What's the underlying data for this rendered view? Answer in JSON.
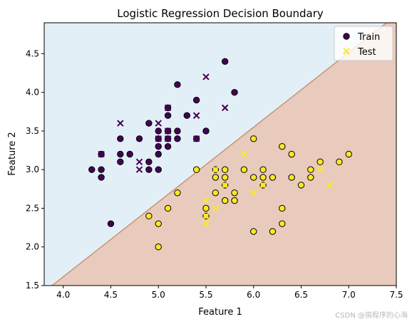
{
  "chart_data": {
    "type": "scatter",
    "title": "Logistic Regression Decision Boundary",
    "xlabel": "Feature 1",
    "ylabel": "Feature 2",
    "xlim": [
      3.8,
      7.5
    ],
    "ylim": [
      1.5,
      4.9
    ],
    "xticks": [
      "4.0",
      "4.5",
      "5.0",
      "5.5",
      "6.0",
      "6.5",
      "7.0",
      "7.5"
    ],
    "yticks": [
      "1.5",
      "2.0",
      "2.5",
      "3.0",
      "3.5",
      "4.0",
      "4.5"
    ],
    "grid": false,
    "legend_position": "top-right",
    "decision_boundary": {
      "x": [
        3.8,
        7.5
      ],
      "y": [
        1.42,
        5.0
      ]
    },
    "regions": {
      "upper_color": "#e3eff7",
      "lower_color": "#e8cbbd",
      "edge_color": "#c9937a"
    },
    "colors": {
      "class0": "#440154",
      "class1": "#fde725"
    },
    "series": [
      {
        "name": "Train",
        "marker": "circle",
        "class0": [
          [
            4.3,
            3.0
          ],
          [
            4.4,
            3.0
          ],
          [
            4.4,
            2.9
          ],
          [
            4.4,
            3.2
          ],
          [
            4.5,
            2.3
          ],
          [
            4.6,
            3.4
          ],
          [
            4.6,
            3.2
          ],
          [
            4.6,
            3.1
          ],
          [
            4.7,
            3.2
          ],
          [
            4.8,
            3.4
          ],
          [
            4.9,
            3.6
          ],
          [
            4.9,
            3.1
          ],
          [
            4.9,
            3.0
          ],
          [
            5.0,
            3.5
          ],
          [
            5.0,
            3.4
          ],
          [
            5.0,
            3.3
          ],
          [
            5.0,
            3.2
          ],
          [
            5.0,
            3.0
          ],
          [
            5.1,
            3.8
          ],
          [
            5.1,
            3.7
          ],
          [
            5.1,
            3.5
          ],
          [
            5.1,
            3.4
          ],
          [
            5.1,
            3.3
          ],
          [
            5.2,
            4.1
          ],
          [
            5.2,
            3.5
          ],
          [
            5.2,
            3.4
          ],
          [
            5.3,
            3.7
          ],
          [
            5.4,
            3.9
          ],
          [
            5.4,
            3.4
          ],
          [
            5.5,
            3.5
          ],
          [
            5.7,
            4.4
          ],
          [
            5.8,
            4.0
          ]
        ],
        "class1": [
          [
            4.9,
            2.4
          ],
          [
            5.0,
            2.3
          ],
          [
            5.0,
            2.0
          ],
          [
            5.1,
            2.5
          ],
          [
            5.2,
            2.7
          ],
          [
            5.4,
            3.0
          ],
          [
            5.5,
            2.5
          ],
          [
            5.5,
            2.4
          ],
          [
            5.6,
            3.0
          ],
          [
            5.6,
            2.9
          ],
          [
            5.6,
            2.7
          ],
          [
            5.7,
            3.0
          ],
          [
            5.7,
            2.9
          ],
          [
            5.7,
            2.8
          ],
          [
            5.7,
            2.6
          ],
          [
            5.8,
            2.7
          ],
          [
            5.8,
            2.6
          ],
          [
            5.9,
            3.0
          ],
          [
            6.0,
            3.4
          ],
          [
            6.0,
            2.9
          ],
          [
            6.0,
            2.2
          ],
          [
            6.1,
            3.0
          ],
          [
            6.1,
            2.9
          ],
          [
            6.1,
            2.8
          ],
          [
            6.2,
            2.9
          ],
          [
            6.2,
            2.2
          ],
          [
            6.3,
            3.3
          ],
          [
            6.3,
            2.5
          ],
          [
            6.3,
            2.3
          ],
          [
            6.4,
            3.2
          ],
          [
            6.4,
            2.9
          ],
          [
            6.5,
            2.8
          ],
          [
            6.6,
            3.0
          ],
          [
            6.6,
            2.9
          ],
          [
            6.7,
            3.1
          ],
          [
            6.9,
            3.1
          ],
          [
            7.0,
            3.2
          ]
        ]
      },
      {
        "name": "Test",
        "marker": "x",
        "class0": [
          [
            4.4,
            3.2
          ],
          [
            4.6,
            3.6
          ],
          [
            4.8,
            3.1
          ],
          [
            4.8,
            3.0
          ],
          [
            5.0,
            3.6
          ],
          [
            5.0,
            3.4
          ],
          [
            5.1,
            3.8
          ],
          [
            5.1,
            3.5
          ],
          [
            5.1,
            3.4
          ],
          [
            5.4,
            3.7
          ],
          [
            5.4,
            3.4
          ],
          [
            5.5,
            4.2
          ],
          [
            5.7,
            3.8
          ]
        ],
        "class1": [
          [
            5.5,
            2.6
          ],
          [
            5.5,
            2.4
          ],
          [
            5.5,
            2.3
          ],
          [
            5.6,
            3.0
          ],
          [
            5.6,
            2.5
          ],
          [
            5.7,
            2.8
          ],
          [
            5.9,
            3.2
          ],
          [
            6.0,
            2.7
          ],
          [
            6.1,
            2.8
          ],
          [
            6.7,
            3.0
          ],
          [
            6.8,
            2.8
          ]
        ]
      }
    ]
  },
  "watermark": "CSDN @搞程序的心海"
}
